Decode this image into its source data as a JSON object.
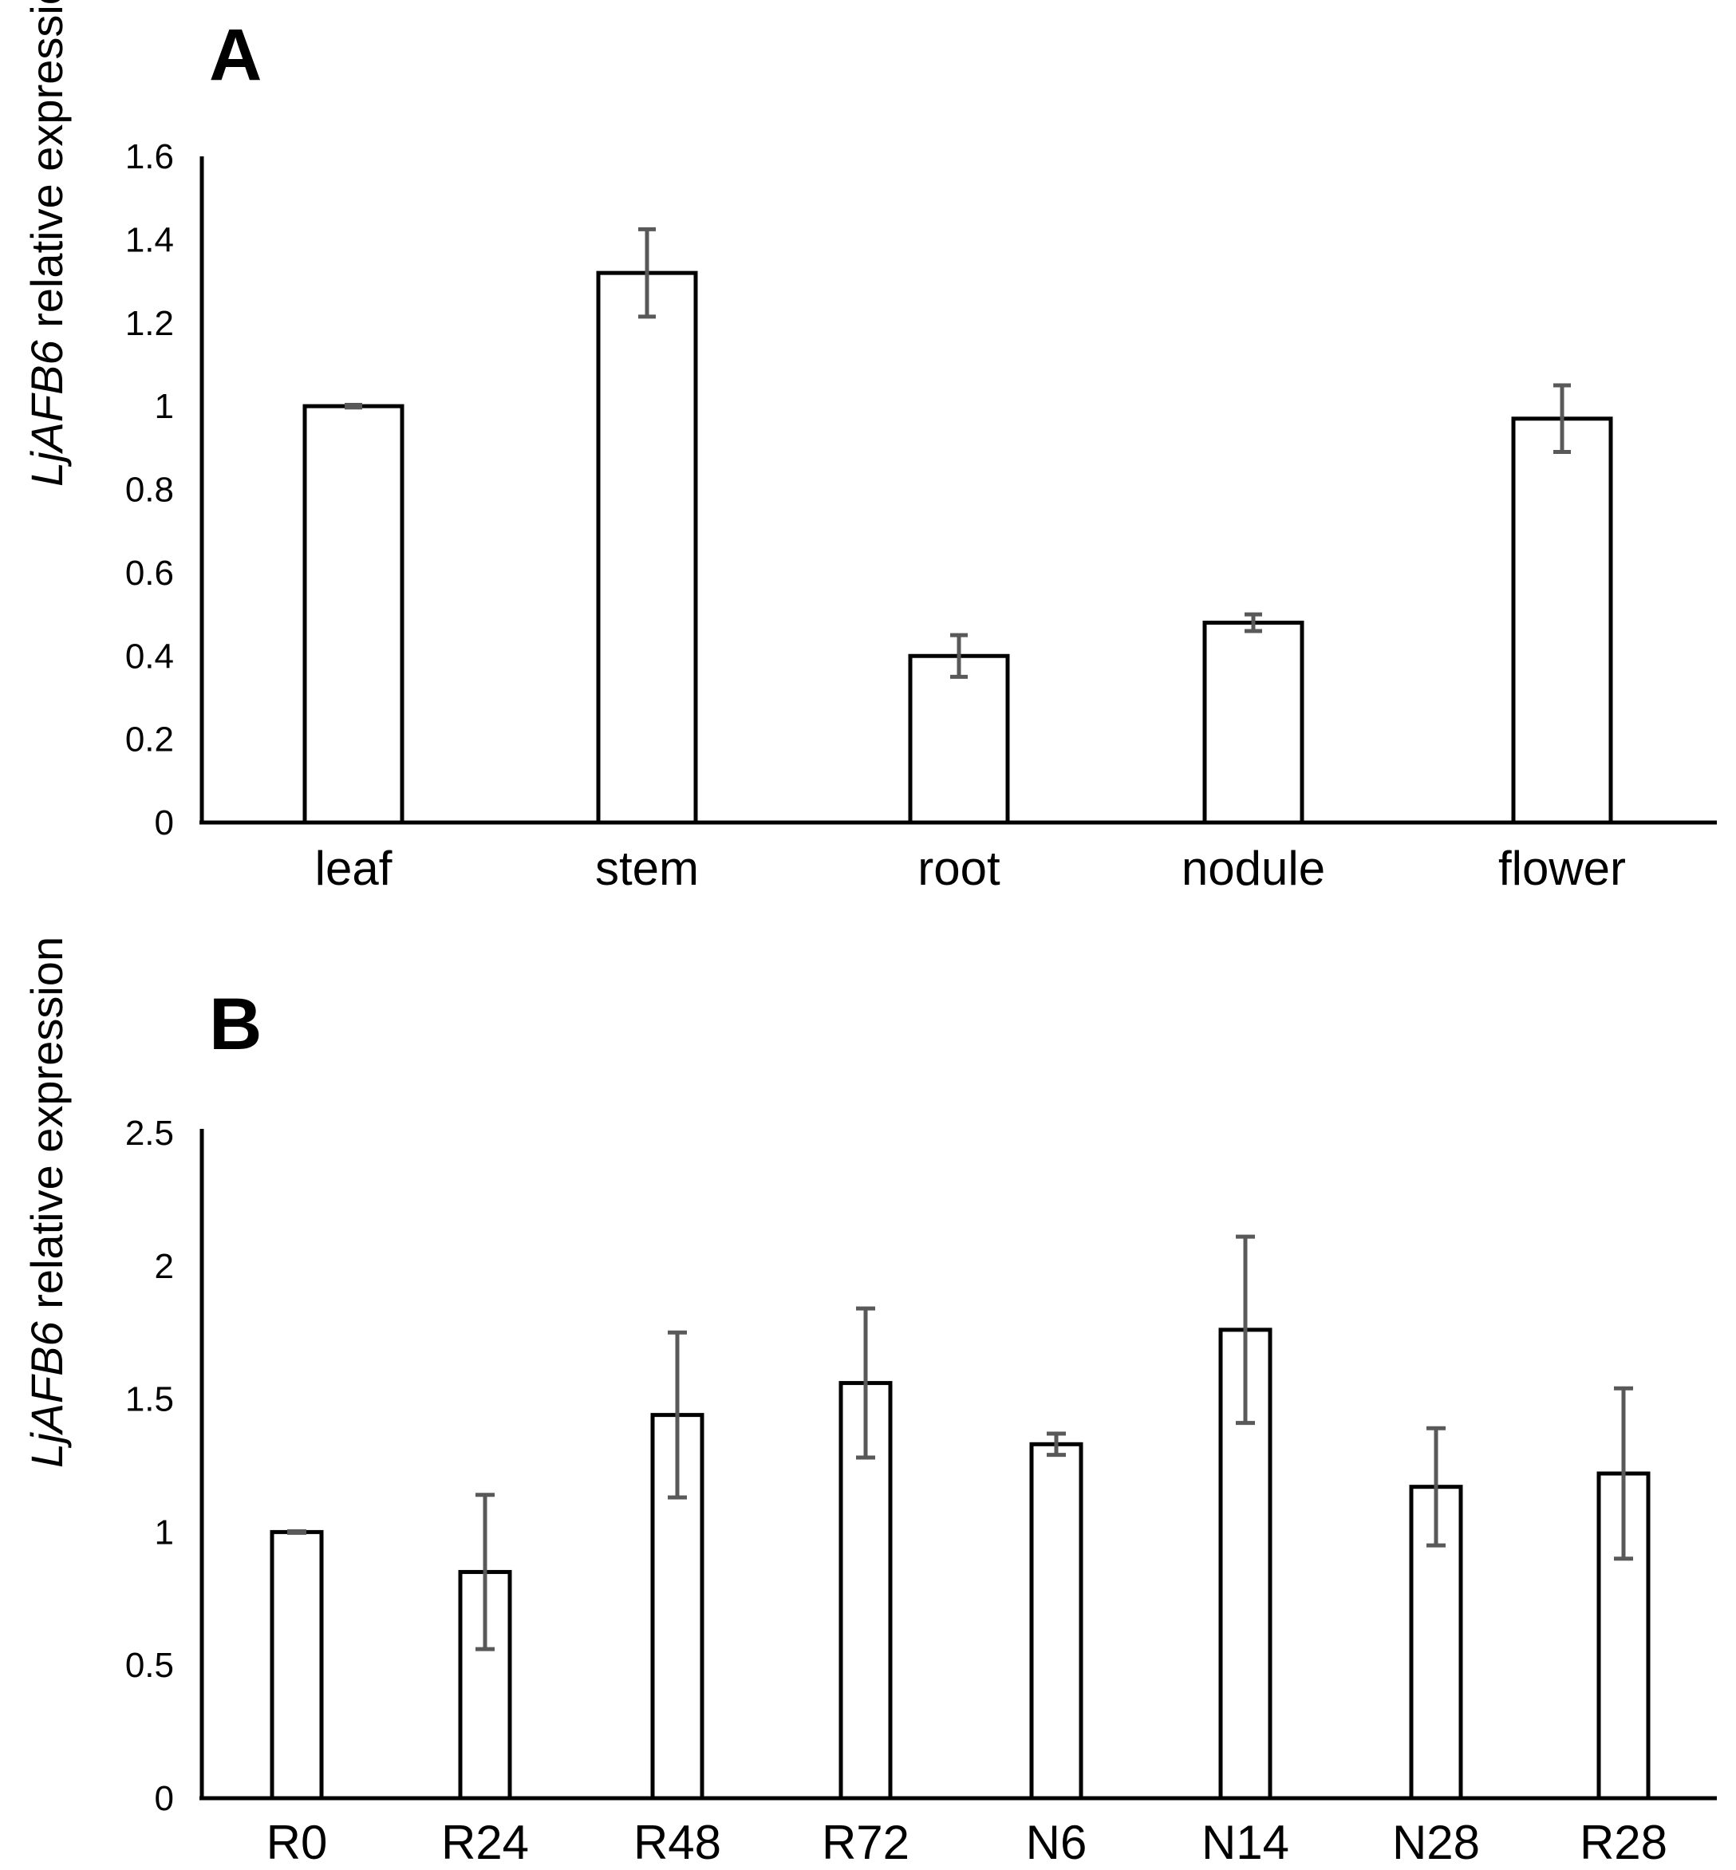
{
  "chart_data": [
    {
      "panel": "A",
      "type": "bar",
      "ylabel_gene": "LjAFB6",
      "ylabel_rest": " relative expression",
      "categories": [
        "leaf",
        "stem",
        "root",
        "nodule",
        "flower"
      ],
      "values": [
        1.0,
        1.32,
        0.4,
        0.48,
        0.97
      ],
      "errors": [
        0.003,
        0.105,
        0.05,
        0.02,
        0.08
      ],
      "ylim": [
        0,
        1.6
      ],
      "yticks": [
        0,
        0.2,
        0.4,
        0.6,
        0.8,
        1,
        1.2,
        1.4,
        1.6
      ],
      "ytick_labels": [
        "0",
        "0.2",
        "0.4",
        "0.6",
        "0.8",
        "1",
        "1.2",
        "1.4",
        "1.6"
      ],
      "colors": {
        "bar_fill": "#ffffff",
        "bar_stroke": "#000000",
        "error_bar": "#595959"
      }
    },
    {
      "panel": "B",
      "type": "bar",
      "ylabel_gene": "LjAFB6",
      "ylabel_rest": " relative expression",
      "categories": [
        "R0",
        "R24",
        "R48",
        "R72",
        "N6",
        "N14",
        "N28",
        "R28"
      ],
      "values": [
        1.0,
        0.85,
        1.44,
        1.56,
        1.33,
        1.76,
        1.17,
        1.22
      ],
      "errors": [
        0.003,
        0.29,
        0.31,
        0.28,
        0.04,
        0.35,
        0.22,
        0.32
      ],
      "ylim": [
        0,
        2.5
      ],
      "yticks": [
        0,
        0.5,
        1,
        1.5,
        2,
        2.5
      ],
      "ytick_labels": [
        "0",
        "0.5",
        "1",
        "1.5",
        "2",
        "2.5"
      ],
      "colors": {
        "bar_fill": "#ffffff",
        "bar_stroke": "#000000",
        "error_bar": "#595959"
      }
    }
  ]
}
